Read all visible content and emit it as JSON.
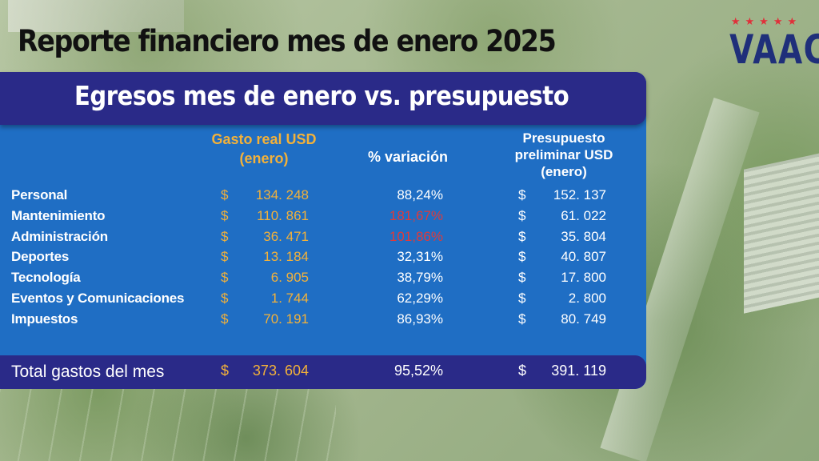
{
  "title": "Reporte financiero mes de enero 2025",
  "logo": {
    "stars": [
      "★",
      "★",
      "★",
      "★",
      "★"
    ],
    "text": "VAAC"
  },
  "section_title": "Egresos mes de enero vs. presupuesto",
  "columns": {
    "real_line1": "Gasto real USD",
    "real_line2": "(enero)",
    "variation": "% variación",
    "budget_line1": "Presupuesto",
    "budget_line2": "preliminar USD",
    "budget_line3": "(enero)"
  },
  "currency": "$",
  "rows": [
    {
      "label": "Personal",
      "real": "134. 248",
      "variation": "88,24%",
      "budget": "152. 137",
      "alert": false
    },
    {
      "label": "Mantenimiento",
      "real": "110. 861",
      "variation": "181,67%",
      "budget": "61. 022",
      "alert": true
    },
    {
      "label": "Administración",
      "real": "36. 471",
      "variation": "101,86%",
      "budget": "35. 804",
      "alert": true
    },
    {
      "label": "Deportes",
      "real": "13. 184",
      "variation": "32,31%",
      "budget": "40. 807",
      "alert": false
    },
    {
      "label": "Tecnología",
      "real": "6. 905",
      "variation": "38,79%",
      "budget": "17. 800",
      "alert": false
    },
    {
      "label": "Eventos y Comunicaciones",
      "real": "1. 744",
      "variation": "62,29%",
      "budget": "2. 800",
      "alert": false
    },
    {
      "label": "Impuestos",
      "real": "70. 191",
      "variation": "86,93%",
      "budget": "80. 749",
      "alert": false
    }
  ],
  "total": {
    "label": "Total gastos del mes",
    "real": "373. 604",
    "variation": "95,52%",
    "budget": "391. 119"
  },
  "colors": {
    "panel": "#1f6ec4",
    "header": "#2a2a88",
    "accent": "#f2b13a",
    "alert": "#e03a3a",
    "logo": "#1f2f7a"
  }
}
